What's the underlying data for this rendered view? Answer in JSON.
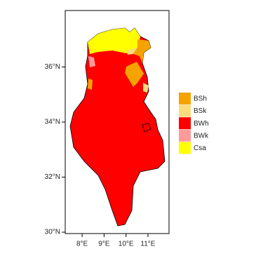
{
  "chart_data": {
    "type": "map",
    "xlim": [
      7.23,
      11.96
    ],
    "ylim": [
      29.95,
      38.05
    ],
    "xticks": [
      {
        "value": 8,
        "label": "8°E"
      },
      {
        "value": 9,
        "label": "9°E"
      },
      {
        "value": 10,
        "label": "10°E"
      },
      {
        "value": 11,
        "label": "11°E"
      }
    ],
    "yticks": [
      {
        "value": 30,
        "label": "30°N"
      },
      {
        "value": 32,
        "label": "32°N"
      },
      {
        "value": 34,
        "label": "34°N"
      },
      {
        "value": 36,
        "label": "36°N"
      }
    ],
    "legend": [
      {
        "name": "BSh",
        "color": "#f4a300"
      },
      {
        "name": "BSk",
        "color": "#fbdb7c"
      },
      {
        "name": "BWh",
        "color": "#ff0000"
      },
      {
        "name": "BWk",
        "color": "#ff9a9a"
      },
      {
        "name": "Csa",
        "color": "#ffff00"
      }
    ],
    "legend_position": "right"
  }
}
